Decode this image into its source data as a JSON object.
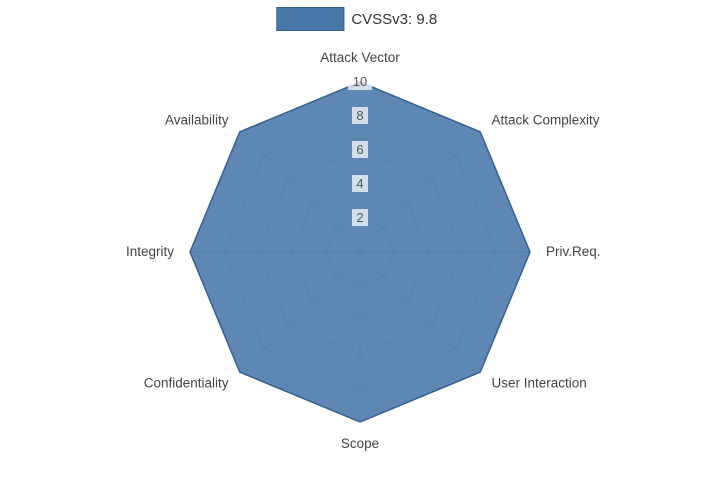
{
  "chart_data": {
    "type": "radar",
    "legend_label": "CVSSv3: 9.8",
    "categories": [
      "Attack Vector",
      "Attack Complexity",
      "Priv.Req.",
      "User Interaction",
      "Scope",
      "Confidentiality",
      "Integrity",
      "Availability"
    ],
    "series": [
      {
        "name": "CVSSv3: 9.8",
        "values": [
          10,
          10,
          10,
          10,
          10,
          10,
          10,
          10
        ]
      }
    ],
    "ticks": [
      2,
      4,
      6,
      8,
      10
    ],
    "range": [
      0,
      10
    ],
    "grid_rings": 5,
    "legend_position": "top-center",
    "colors": {
      "fill": "#4878a8",
      "fill_opacity": "0.88",
      "stroke": "#35618f",
      "grid": "#999999",
      "axis_label": "#444444",
      "tick_label": "#555555",
      "tick_bg": "#ffffff"
    }
  }
}
